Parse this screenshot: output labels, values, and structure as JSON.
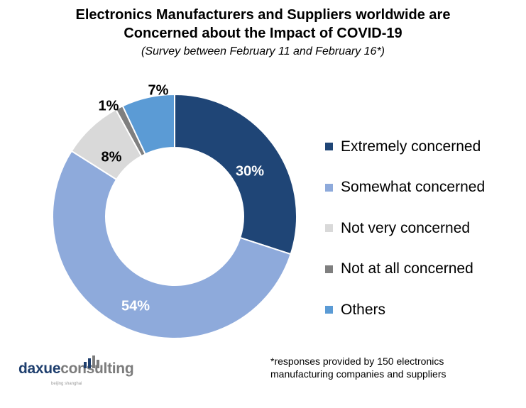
{
  "header": {
    "title_line1": "Electronics Manufacturers and Suppliers worldwide are",
    "title_line2": "Concerned about the Impact of COVID-19",
    "subtitle": "(Survey between  February 11 and February 16*)"
  },
  "chart_data": {
    "type": "pie",
    "style": "donut",
    "title": "Electronics Manufacturers and Suppliers worldwide are Concerned about the Impact of COVID-19",
    "subtitle": "(Survey between February 11 and February 16*)",
    "legend_position": "right",
    "slices": [
      {
        "label": "Extremely concerned",
        "value": 30,
        "display": "30%",
        "color": "#1f4576",
        "label_color": "#ffffff"
      },
      {
        "label": "Somewhat concerned",
        "value": 54,
        "display": "54%",
        "color": "#8eaadb",
        "label_color": "#ffffff"
      },
      {
        "label": "Not very concerned",
        "value": 8,
        "display": "8%",
        "color": "#d9d9d9",
        "label_color": "#000000"
      },
      {
        "label": "Not at all concerned",
        "value": 1,
        "display": "1%",
        "color": "#7f7f7f",
        "label_color": "#000000"
      },
      {
        "label": "Others",
        "value": 7,
        "display": "7%",
        "color": "#5b9bd5",
        "label_color": "#000000"
      }
    ]
  },
  "footnote": {
    "line1": "*responses provided by 150 electronics",
    "line2": "manufacturing companies and suppliers"
  },
  "brand": {
    "name_part1": "daxue",
    "name_part2": "consulting",
    "tagline": "beijing shanghai"
  }
}
